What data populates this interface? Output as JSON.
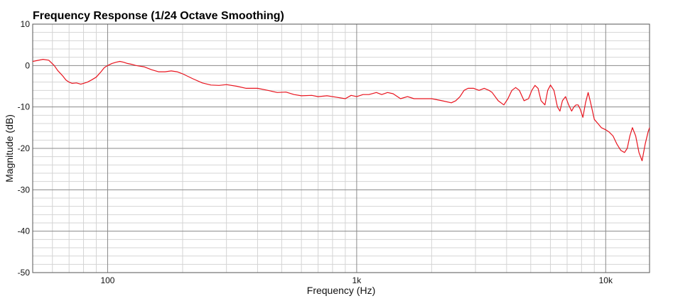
{
  "chart_data": {
    "type": "line",
    "title": "Frequency Response (1/24 Octave Smoothing)",
    "xlabel": "Frequency (Hz)",
    "ylabel": "Magnitude (dB)",
    "x_scale": "log",
    "xlim": [
      50,
      15000
    ],
    "ylim": [
      -50,
      10
    ],
    "x_ticks": [
      {
        "value": 100,
        "label": "100"
      },
      {
        "value": 1000,
        "label": "1k"
      },
      {
        "value": 10000,
        "label": "10k"
      }
    ],
    "y_ticks": [
      {
        "value": 10,
        "label": "10"
      },
      {
        "value": 0,
        "label": "0"
      },
      {
        "value": -10,
        "label": "-10"
      },
      {
        "value": -20,
        "label": "-20"
      },
      {
        "value": -30,
        "label": "-30"
      },
      {
        "value": -40,
        "label": "-40"
      },
      {
        "value": -50,
        "label": "-50"
      }
    ],
    "grid": true,
    "series": [
      {
        "color": "#e8141e",
        "x": [
          50,
          55,
          58,
          61,
          63,
          66,
          68,
          70,
          72,
          75,
          78,
          80,
          83,
          86,
          90,
          94,
          97,
          100,
          104,
          108,
          112,
          116,
          120,
          125,
          130,
          140,
          150,
          160,
          170,
          180,
          190,
          200,
          220,
          240,
          260,
          280,
          300,
          330,
          360,
          400,
          440,
          480,
          520,
          560,
          600,
          660,
          700,
          760,
          820,
          900,
          950,
          1000,
          1060,
          1120,
          1200,
          1260,
          1330,
          1400,
          1500,
          1600,
          1700,
          1800,
          1900,
          2000,
          2200,
          2400,
          2500,
          2600,
          2700,
          2800,
          2950,
          3100,
          3250,
          3400,
          3500,
          3700,
          3900,
          4050,
          4200,
          4350,
          4500,
          4700,
          4900,
          5050,
          5200,
          5350,
          5500,
          5700,
          5850,
          6000,
          6200,
          6400,
          6550,
          6700,
          6900,
          7100,
          7300,
          7450,
          7600,
          7750,
          7900,
          8100,
          8300,
          8500,
          8700,
          9000,
          9300,
          9600,
          10000,
          10300,
          10700,
          11100,
          11500,
          11900,
          12200,
          12500,
          12800,
          13200,
          13600,
          14000,
          14400,
          14800,
          15000
        ],
        "values": [
          1.0,
          1.5,
          1.3,
          0.0,
          -1.2,
          -2.5,
          -3.5,
          -4.0,
          -4.3,
          -4.2,
          -4.5,
          -4.3,
          -4.0,
          -3.5,
          -2.8,
          -1.5,
          -0.5,
          0.0,
          0.5,
          0.8,
          1.0,
          0.8,
          0.5,
          0.3,
          0.0,
          -0.3,
          -1.0,
          -1.5,
          -1.5,
          -1.3,
          -1.5,
          -2.0,
          -3.2,
          -4.2,
          -4.7,
          -4.8,
          -4.6,
          -5.0,
          -5.5,
          -5.5,
          -6.0,
          -6.5,
          -6.4,
          -7.0,
          -7.3,
          -7.2,
          -7.5,
          -7.3,
          -7.6,
          -8.0,
          -7.2,
          -7.5,
          -7.0,
          -7.0,
          -6.5,
          -7.0,
          -6.5,
          -6.8,
          -8.0,
          -7.5,
          -8.0,
          -8.0,
          -8.0,
          -8.0,
          -8.5,
          -9.0,
          -8.5,
          -7.5,
          -6.0,
          -5.5,
          -5.5,
          -6.0,
          -5.5,
          -6.0,
          -6.5,
          -8.5,
          -9.5,
          -8.0,
          -6.0,
          -5.3,
          -6.0,
          -8.5,
          -8.0,
          -6.0,
          -4.8,
          -5.5,
          -8.5,
          -9.5,
          -6.0,
          -4.7,
          -6.0,
          -10.0,
          -11.0,
          -8.5,
          -7.5,
          -9.5,
          -11.0,
          -10.0,
          -9.5,
          -9.5,
          -10.5,
          -12.5,
          -9.0,
          -6.5,
          -9.0,
          -13.0,
          -14.0,
          -15.0,
          -15.5,
          -16.0,
          -17.0,
          -19.0,
          -20.5,
          -21.0,
          -20.0,
          -17.0,
          -15.0,
          -17.0,
          -21.0,
          -23.0,
          -19.0,
          -16.0,
          -15.0
        ]
      }
    ]
  }
}
